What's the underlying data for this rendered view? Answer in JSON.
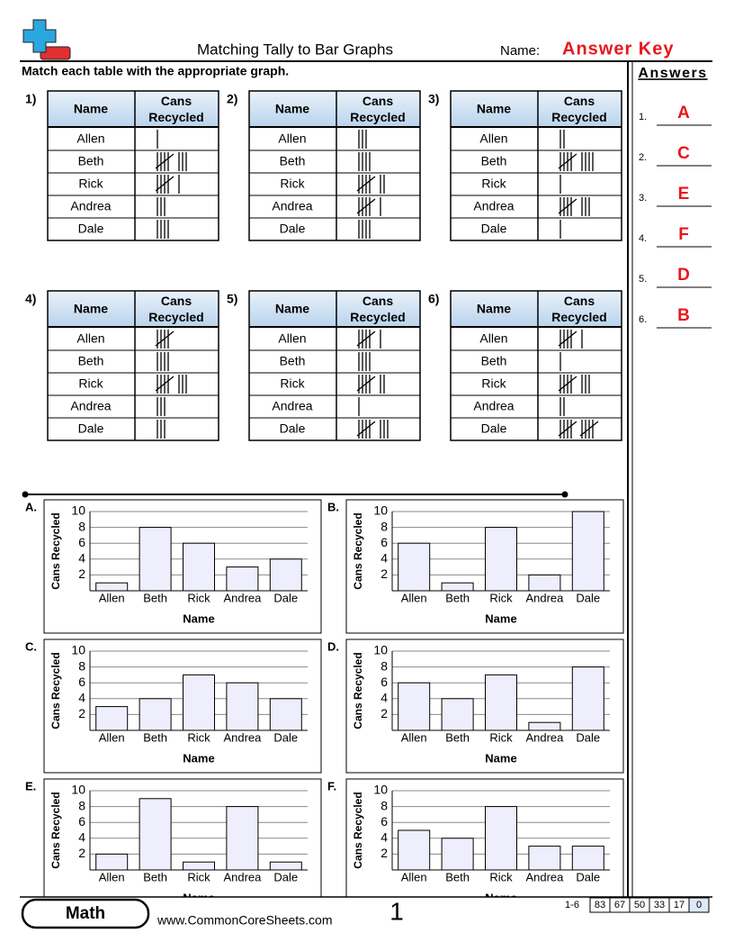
{
  "header": {
    "title": "Matching Tally to Bar Graphs",
    "name_label": "Name:",
    "answer_key": "Answer Key"
  },
  "instructions": "Match each table with the appropriate graph.",
  "table_columns": [
    "Name",
    "Cans Recycled"
  ],
  "names": [
    "Allen",
    "Beth",
    "Rick",
    "Andrea",
    "Dale"
  ],
  "tables": [
    {
      "label": "1)",
      "counts": [
        1,
        8,
        6,
        3,
        4
      ]
    },
    {
      "label": "2)",
      "counts": [
        3,
        4,
        7,
        6,
        4
      ]
    },
    {
      "label": "3)",
      "counts": [
        2,
        9,
        1,
        8,
        1
      ]
    },
    {
      "label": "4)",
      "counts": [
        5,
        4,
        8,
        3,
        3
      ]
    },
    {
      "label": "5)",
      "counts": [
        6,
        4,
        7,
        1,
        8
      ]
    },
    {
      "label": "6)",
      "counts": [
        6,
        1,
        8,
        2,
        10
      ]
    }
  ],
  "chart_axis": {
    "ylabel": "Cans Recycled",
    "xlabel": "Name",
    "ylim": [
      0,
      10
    ],
    "yticks": [
      2,
      4,
      6,
      8,
      10
    ]
  },
  "charts": [
    {
      "label": "A.",
      "values": [
        1,
        8,
        6,
        3,
        4
      ]
    },
    {
      "label": "B.",
      "values": [
        6,
        1,
        8,
        2,
        10
      ]
    },
    {
      "label": "C.",
      "values": [
        3,
        4,
        7,
        6,
        4
      ]
    },
    {
      "label": "D.",
      "values": [
        6,
        4,
        7,
        1,
        8
      ]
    },
    {
      "label": "E.",
      "values": [
        2,
        9,
        1,
        8,
        1
      ]
    },
    {
      "label": "F.",
      "values": [
        5,
        4,
        8,
        3,
        3
      ]
    }
  ],
  "answers": {
    "title": "Answers",
    "items": [
      {
        "num": "1.",
        "answer": "A"
      },
      {
        "num": "2.",
        "answer": "C"
      },
      {
        "num": "3.",
        "answer": "E"
      },
      {
        "num": "4.",
        "answer": "F"
      },
      {
        "num": "5.",
        "answer": "D"
      },
      {
        "num": "6.",
        "answer": "B"
      }
    ]
  },
  "footer": {
    "subject": "Math",
    "website": "www.CommonCoreSheets.com",
    "page": "1",
    "score_range": "1-6",
    "scores": [
      "83",
      "67",
      "50",
      "33",
      "17",
      "0"
    ]
  }
}
